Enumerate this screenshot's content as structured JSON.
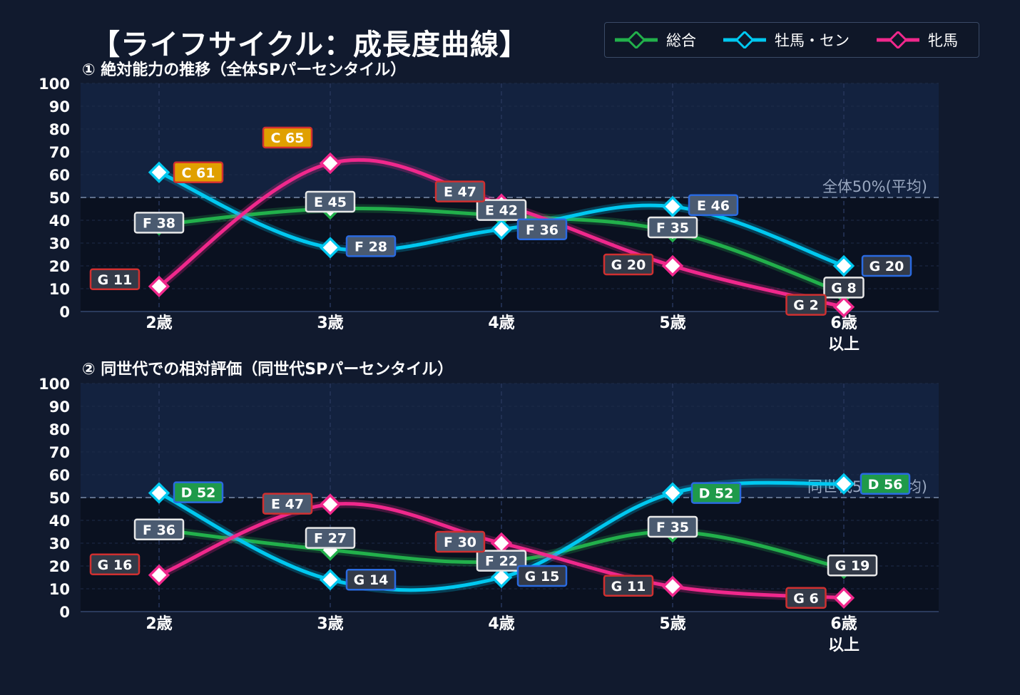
{
  "title": "【ライフサイクル：成長度曲線】",
  "legend": {
    "items": [
      {
        "label": "総合",
        "color": "#22b04b"
      },
      {
        "label": "牡馬・セン",
        "color": "#00c8f0"
      },
      {
        "label": "牝馬",
        "color": "#f0288c"
      }
    ]
  },
  "chart_data": [
    {
      "type": "line",
      "title": "① 絶対能力の推移（全体SPパーセンタイル）",
      "categories": [
        "2歳",
        "3歳",
        "4歳",
        "5歳",
        "6歳\n以上"
      ],
      "ylim": [
        0,
        100
      ],
      "yticks": [
        0,
        10,
        20,
        30,
        40,
        50,
        60,
        70,
        80,
        90,
        100
      ],
      "grid": true,
      "reference_line": {
        "value": 50,
        "label": "全体50%(平均)"
      },
      "series": [
        {
          "name": "総合",
          "color": "#22b04b",
          "values": [
            38,
            45,
            42,
            35,
            8
          ],
          "labels": [
            "F 38",
            "E 45",
            "E 42",
            "F 35",
            "G 8"
          ]
        },
        {
          "name": "牡馬・セン",
          "color": "#00c8f0",
          "values": [
            61,
            28,
            36,
            46,
            20
          ],
          "labels": [
            "C 61",
            "F 28",
            "F 36",
            "E 46",
            "G 20"
          ]
        },
        {
          "name": "牝馬",
          "color": "#f0288c",
          "values": [
            11,
            65,
            47,
            20,
            2
          ],
          "labels": [
            "G 11",
            "C 65",
            "E 47",
            "G 20",
            "G 2"
          ]
        }
      ]
    },
    {
      "type": "line",
      "title": "② 同世代での相対評価（同世代SPパーセンタイル）",
      "categories": [
        "2歳",
        "3歳",
        "4歳",
        "5歳",
        "6歳\n以上"
      ],
      "ylim": [
        0,
        100
      ],
      "yticks": [
        0,
        10,
        20,
        30,
        40,
        50,
        60,
        70,
        80,
        90,
        100
      ],
      "grid": true,
      "reference_line": {
        "value": 50,
        "label": "同世代50%(平均)"
      },
      "series": [
        {
          "name": "総合",
          "color": "#22b04b",
          "values": [
            36,
            27,
            22,
            35,
            19
          ],
          "labels": [
            "F 36",
            "F 27",
            "F 22",
            "F 35",
            "G 19"
          ]
        },
        {
          "name": "牡馬・セン",
          "color": "#00c8f0",
          "values": [
            52,
            14,
            15,
            52,
            56
          ],
          "labels": [
            "D 52",
            "G 14",
            "G 15",
            "D 52",
            "D 56"
          ]
        },
        {
          "name": "牝馬",
          "color": "#f0288c",
          "values": [
            16,
            47,
            30,
            11,
            6
          ],
          "labels": [
            "G 16",
            "E 47",
            "F 30",
            "G 11",
            "G 6"
          ]
        }
      ]
    }
  ],
  "grade_colors": {
    "C": "#e0a000",
    "D": "#1f9a4a",
    "E": "#4a5a70",
    "F": "#4a5a70",
    "G": "#333a48"
  }
}
